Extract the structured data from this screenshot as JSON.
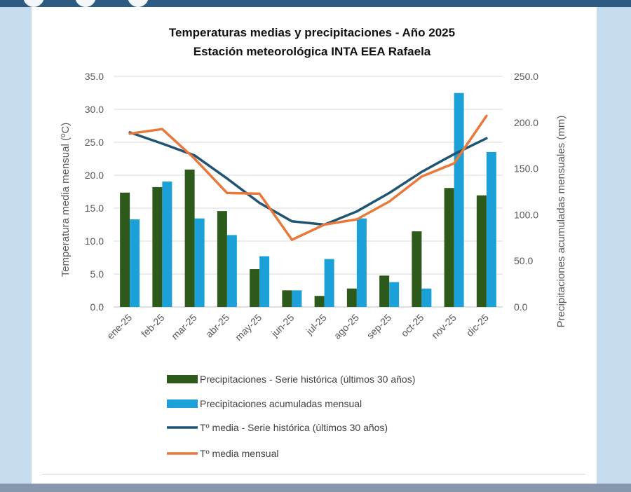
{
  "chart_data": {
    "type": "bar",
    "title": "Temperaturas medias y precipitaciones - Año 2025",
    "subtitle": "Estación meteorológica INTA EEA Rafaela",
    "categories": [
      "ene-25",
      "feb-25",
      "mar-25",
      "abr-25",
      "may-25",
      "jun-25",
      "jul-25",
      "ago-25",
      "sep-25",
      "oct-25",
      "nov-25",
      "dic-25"
    ],
    "series": [
      {
        "name": "Precipitaciones - Serie histórica (últimos 30 años)",
        "type": "bar",
        "axis": "right",
        "color": "#2d5a1b",
        "values": [
          124,
          130,
          149,
          104,
          41,
          18,
          12,
          20,
          34,
          82,
          129,
          121
        ]
      },
      {
        "name": "Precipitaciones acumuladas mensual",
        "type": "bar",
        "axis": "right",
        "color": "#1ba1d8",
        "values": [
          95,
          136,
          96,
          78,
          55,
          18,
          52,
          96,
          27,
          20,
          232,
          168
        ]
      },
      {
        "name": "Tº media - Serie histórica (últimos 30 años)",
        "type": "line",
        "axis": "left",
        "color": "#1f5573",
        "values": [
          26.5,
          24.8,
          23.0,
          19.5,
          15.8,
          13.0,
          12.5,
          14.5,
          17.3,
          20.5,
          23.2,
          25.6
        ]
      },
      {
        "name": "Tº media mensual",
        "type": "line",
        "axis": "left",
        "color": "#e8793a",
        "values": [
          26.3,
          27.0,
          22.5,
          17.3,
          17.2,
          10.2,
          12.5,
          13.3,
          16.0,
          19.8,
          21.8,
          29.0
        ]
      }
    ],
    "y_left": {
      "label": "Temperatura media mensual (ºC)",
      "min": 0,
      "max": 35,
      "ticks": [
        "0.0",
        "5.0",
        "10.0",
        "15.0",
        "20.0",
        "25.0",
        "30.0",
        "35.0"
      ]
    },
    "y_right": {
      "label": "Precipitaciones acumuladas mensuales (mm)",
      "min": 0,
      "max": 250,
      "ticks": [
        "0.0",
        "50.0",
        "100.0",
        "150.0",
        "200.0",
        "250.0"
      ]
    },
    "grid": true,
    "legend_position": "bottom"
  }
}
